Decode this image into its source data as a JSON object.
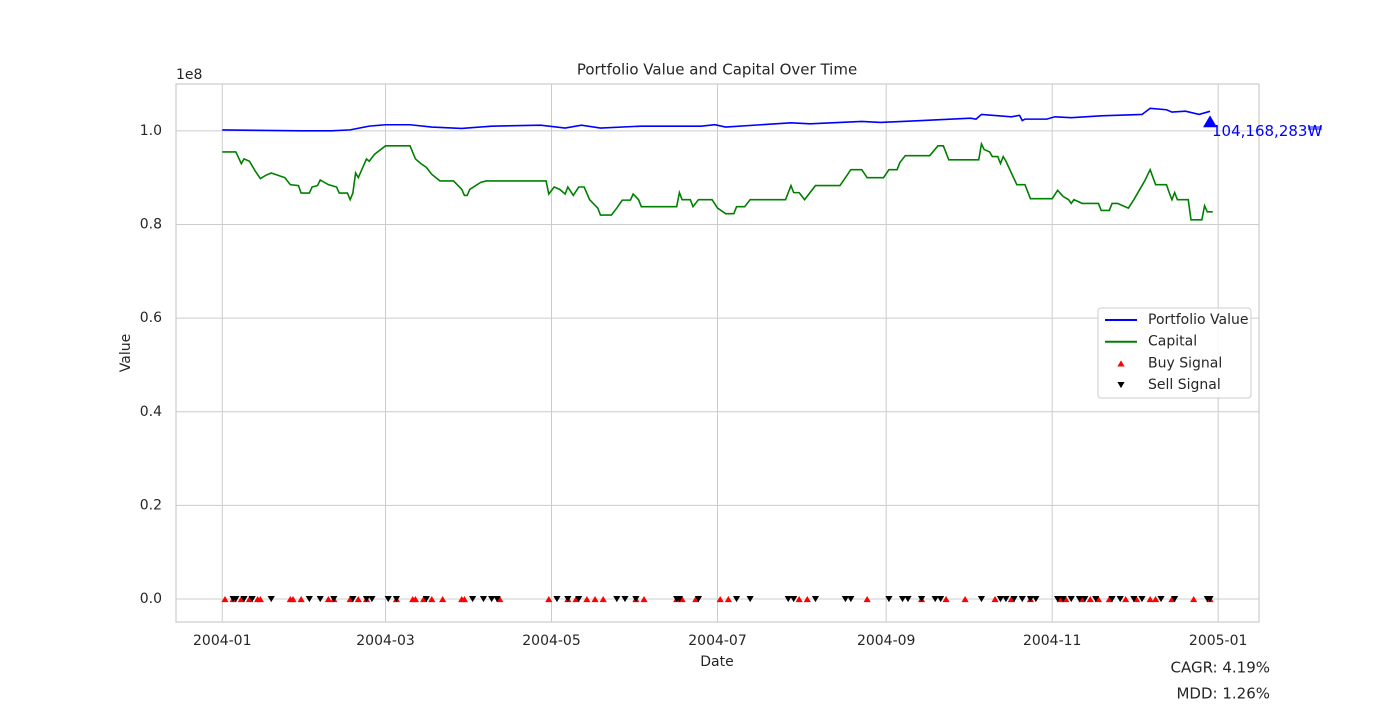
{
  "chart_data": {
    "type": "line",
    "title": "Portfolio Value and Capital Over Time",
    "x_label": "Date",
    "y_label": "Value",
    "y_offset_label": "1e8",
    "stats": [
      "CAGR: 4.19%",
      "MDD: 1.26%"
    ],
    "xlim": [
      -17,
      381
    ],
    "xticks": [
      {
        "value": 0,
        "label": "2004-01"
      },
      {
        "value": 60,
        "label": "2004-03"
      },
      {
        "value": 121,
        "label": "2004-05"
      },
      {
        "value": 182,
        "label": "2004-07"
      },
      {
        "value": 244,
        "label": "2004-09"
      },
      {
        "value": 305,
        "label": "2004-11"
      },
      {
        "value": 366,
        "label": "2005-01"
      }
    ],
    "ylim": [
      -0.049,
      1.1
    ],
    "yticks": [
      {
        "value": 0,
        "label": "0.0"
      },
      0.2,
      0.4,
      0.6,
      0.8,
      {
        "value": 1,
        "label": "1.0"
      }
    ],
    "grid": true,
    "legend": "center right",
    "series": [
      {
        "name": "Portfolio Value",
        "color": "#0000ff",
        "kind": "line",
        "x": [
          0,
          29,
          40,
          47,
          54,
          60,
          69,
          77,
          88,
          99,
          117,
          126,
          132,
          139,
          154,
          176,
          181,
          185,
          198,
          209,
          216,
          235,
          242,
          257,
          275,
          277,
          279,
          290,
          293,
          294,
          295,
          303,
          306,
          312,
          323,
          338,
          341,
          347,
          349,
          354,
          359,
          363
        ],
        "values": [
          1.002,
          1.0,
          1.0,
          1.002,
          1.01,
          1.013,
          1.013,
          1.008,
          1.005,
          1.01,
          1.012,
          1.006,
          1.012,
          1.006,
          1.01,
          1.01,
          1.013,
          1.008,
          1.013,
          1.017,
          1.015,
          1.02,
          1.018,
          1.022,
          1.027,
          1.025,
          1.035,
          1.03,
          1.033,
          1.022,
          1.025,
          1.025,
          1.03,
          1.028,
          1.032,
          1.035,
          1.048,
          1.045,
          1.04,
          1.042,
          1.035,
          1.0417
        ]
      },
      {
        "name": "Capital",
        "color": "#008000",
        "kind": "line",
        "x": [
          0,
          5,
          7,
          8,
          10,
          12,
          14,
          16,
          18,
          23,
          25,
          28,
          29,
          32,
          33,
          35,
          36,
          39,
          42,
          43,
          46,
          47,
          48,
          49,
          50,
          53,
          54,
          56,
          60,
          69,
          71,
          73,
          75,
          77,
          80,
          85,
          88,
          89,
          90,
          91,
          95,
          97,
          119,
          120,
          122,
          124,
          126,
          127,
          129,
          131,
          133,
          135,
          138,
          139,
          143,
          145,
          147,
          150,
          151,
          153,
          154,
          167,
          168,
          169,
          172,
          173,
          175,
          180,
          182,
          185,
          188,
          189,
          192,
          194,
          207,
          209,
          210,
          212,
          214,
          218,
          227,
          229,
          231,
          235,
          237,
          243,
          245,
          248,
          249,
          251,
          260,
          263,
          265,
          267,
          278,
          279,
          280,
          282,
          283,
          285,
          286,
          287,
          288,
          292,
          295,
          297,
          305,
          307,
          309,
          311,
          312,
          313,
          316,
          322,
          323,
          326,
          327,
          329,
          331,
          333,
          335,
          339,
          341,
          343,
          347,
          348,
          349,
          350,
          351,
          355,
          356,
          360,
          361,
          362,
          364
        ],
        "values": [
          0.955,
          0.955,
          0.93,
          0.94,
          0.935,
          0.915,
          0.898,
          0.905,
          0.91,
          0.9,
          0.885,
          0.883,
          0.867,
          0.867,
          0.88,
          0.883,
          0.895,
          0.885,
          0.88,
          0.867,
          0.867,
          0.853,
          0.867,
          0.91,
          0.9,
          0.94,
          0.935,
          0.95,
          0.968,
          0.968,
          0.94,
          0.93,
          0.922,
          0.907,
          0.893,
          0.893,
          0.875,
          0.862,
          0.862,
          0.875,
          0.89,
          0.893,
          0.893,
          0.865,
          0.88,
          0.875,
          0.865,
          0.88,
          0.862,
          0.88,
          0.88,
          0.853,
          0.835,
          0.82,
          0.82,
          0.835,
          0.852,
          0.852,
          0.865,
          0.853,
          0.838,
          0.838,
          0.868,
          0.853,
          0.853,
          0.838,
          0.853,
          0.853,
          0.835,
          0.823,
          0.823,
          0.838,
          0.838,
          0.853,
          0.853,
          0.883,
          0.868,
          0.868,
          0.853,
          0.883,
          0.883,
          0.9,
          0.917,
          0.917,
          0.9,
          0.9,
          0.917,
          0.917,
          0.932,
          0.947,
          0.947,
          0.968,
          0.968,
          0.938,
          0.938,
          0.972,
          0.96,
          0.955,
          0.945,
          0.945,
          0.93,
          0.945,
          0.935,
          0.885,
          0.885,
          0.855,
          0.855,
          0.873,
          0.86,
          0.853,
          0.845,
          0.853,
          0.845,
          0.845,
          0.83,
          0.83,
          0.845,
          0.845,
          0.84,
          0.835,
          0.853,
          0.893,
          0.917,
          0.885,
          0.885,
          0.868,
          0.853,
          0.868,
          0.853,
          0.853,
          0.81,
          0.81,
          0.84,
          0.827,
          0.827
        ]
      },
      {
        "name": "Buy Signal",
        "color": "#ff0000",
        "kind": "marker",
        "marker": "^",
        "x": [
          1,
          4,
          7,
          10,
          13,
          14,
          25,
          26,
          29,
          39,
          41,
          47,
          50,
          53,
          64,
          70,
          71,
          74,
          77,
          81,
          88,
          89,
          102,
          120,
          127,
          130,
          134,
          137,
          140,
          152,
          155,
          167,
          169,
          174,
          183,
          186,
          212,
          215,
          237,
          257,
          266,
          273,
          284,
          290,
          297,
          308,
          310,
          316,
          319,
          322,
          326,
          332,
          336,
          341,
          343,
          349,
          357,
          363
        ],
        "values": [
          0,
          0,
          0,
          0,
          0,
          0,
          0,
          0,
          0,
          0,
          0,
          0,
          0,
          0,
          0,
          0,
          0,
          0,
          0,
          0,
          0,
          0,
          0,
          0,
          0,
          0,
          0,
          0,
          0,
          0,
          0,
          0,
          0,
          0,
          0,
          0,
          0,
          0,
          0,
          0,
          0,
          0,
          0,
          0,
          0,
          0,
          0,
          0,
          0,
          0,
          0,
          0,
          0,
          0,
          0,
          0,
          0,
          0
        ]
      },
      {
        "name": "Sell Signal",
        "color": "#000000",
        "kind": "marker",
        "marker": "v",
        "x": [
          4,
          5,
          8,
          11,
          18,
          32,
          36,
          41,
          48,
          53,
          55,
          61,
          64,
          75,
          92,
          96,
          99,
          101,
          123,
          127,
          131,
          145,
          148,
          152,
          167,
          168,
          175,
          189,
          194,
          208,
          210,
          218,
          229,
          231,
          245,
          250,
          252,
          257,
          262,
          264,
          279,
          286,
          288,
          291,
          294,
          297,
          299,
          307,
          309,
          312,
          315,
          317,
          321,
          327,
          330,
          335,
          338,
          345,
          350,
          362,
          363
        ],
        "values": [
          0,
          0,
          0,
          0,
          0,
          0,
          0,
          0,
          0,
          0,
          0,
          0,
          0,
          0,
          0,
          0,
          0,
          0,
          0,
          0,
          0,
          0,
          0,
          0,
          0,
          0,
          0,
          0,
          0,
          0,
          0,
          0,
          0,
          0,
          0,
          0,
          0,
          0,
          0,
          0,
          0,
          0,
          0,
          0,
          0,
          0,
          0,
          0,
          0,
          0,
          0,
          0,
          0,
          0,
          0,
          0,
          0,
          0,
          0,
          0,
          0
        ]
      }
    ],
    "annotation": {
      "x": 363,
      "y": 1.0417,
      "text": "104,168,283₩",
      "color": "#0000ff"
    }
  }
}
